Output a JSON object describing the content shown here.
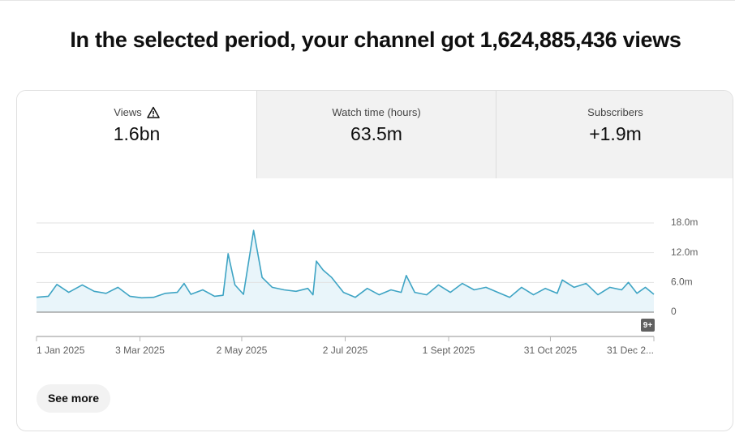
{
  "header": {
    "title": "In the selected period, your channel got 1,624,885,436 views"
  },
  "tabs": [
    {
      "label": "Views",
      "value": "1.6bn"
    },
    {
      "label": "Watch time (hours)",
      "value": "63.5m"
    },
    {
      "label": "Subscribers",
      "value": "+1.9m"
    }
  ],
  "chart_data": {
    "type": "line",
    "color": "#3ea4c4",
    "fill_color": "#e9f5fa",
    "grid": true,
    "x": [
      "2025-01-01",
      "2025-01-08",
      "2025-01-13",
      "2025-01-20",
      "2025-01-28",
      "2025-02-04",
      "2025-02-11",
      "2025-02-18",
      "2025-02-25",
      "2025-03-04",
      "2025-03-11",
      "2025-03-18",
      "2025-03-25",
      "2025-03-29",
      "2025-04-02",
      "2025-04-09",
      "2025-04-16",
      "2025-04-21",
      "2025-04-24",
      "2025-04-28",
      "2025-05-03",
      "2025-05-09",
      "2025-05-14",
      "2025-05-20",
      "2025-05-27",
      "2025-06-03",
      "2025-06-10",
      "2025-06-13",
      "2025-06-15",
      "2025-06-19",
      "2025-06-24",
      "2025-07-01",
      "2025-07-08",
      "2025-07-15",
      "2025-07-22",
      "2025-07-29",
      "2025-08-04",
      "2025-08-07",
      "2025-08-12",
      "2025-08-19",
      "2025-08-26",
      "2025-09-02",
      "2025-09-09",
      "2025-09-16",
      "2025-09-23",
      "2025-09-30",
      "2025-10-07",
      "2025-10-14",
      "2025-10-21",
      "2025-10-28",
      "2025-11-04",
      "2025-11-07",
      "2025-11-14",
      "2025-11-21",
      "2025-11-28",
      "2025-12-05",
      "2025-12-12",
      "2025-12-16",
      "2025-12-21",
      "2025-12-26",
      "2025-12-31"
    ],
    "values": [
      3.0,
      3.2,
      5.6,
      4.0,
      5.5,
      4.2,
      3.8,
      5.0,
      3.2,
      2.9,
      3.0,
      3.8,
      4.0,
      5.8,
      3.6,
      4.5,
      3.2,
      3.4,
      11.8,
      5.5,
      3.6,
      16.5,
      7.0,
      5.0,
      4.5,
      4.2,
      4.8,
      3.5,
      10.3,
      8.5,
      7.0,
      4.0,
      3.0,
      4.8,
      3.5,
      4.5,
      4.0,
      7.4,
      4.0,
      3.5,
      5.5,
      4.0,
      5.8,
      4.5,
      5.0,
      4.0,
      3.0,
      5.0,
      3.5,
      4.8,
      3.8,
      6.5,
      5.0,
      5.8,
      3.5,
      5.0,
      4.5,
      6.0,
      3.8,
      5.0,
      3.6
    ],
    "xlim": [
      "2025-01-01",
      "2025-12-31"
    ],
    "xticks": [
      {
        "value": "2025-01-01",
        "label": "1 Jan 2025"
      },
      {
        "value": "2025-03-03",
        "label": "3 Mar 2025"
      },
      {
        "value": "2025-05-02",
        "label": "2 May 2025"
      },
      {
        "value": "2025-07-02",
        "label": "2 Jul 2025"
      },
      {
        "value": "2025-09-01",
        "label": "1 Sept 2025"
      },
      {
        "value": "2025-10-31",
        "label": "31 Oct 2025"
      },
      {
        "value": "2025-12-31",
        "label": "31 Dec 2..."
      }
    ],
    "ylim": [
      0,
      18
    ],
    "yticks": [
      0,
      {
        "value": 6,
        "label": "6.0m"
      },
      {
        "value": 12,
        "label": "12.0m"
      },
      {
        "value": 18,
        "label": "18.0m"
      }
    ],
    "badge": "9+"
  },
  "button": "See more"
}
